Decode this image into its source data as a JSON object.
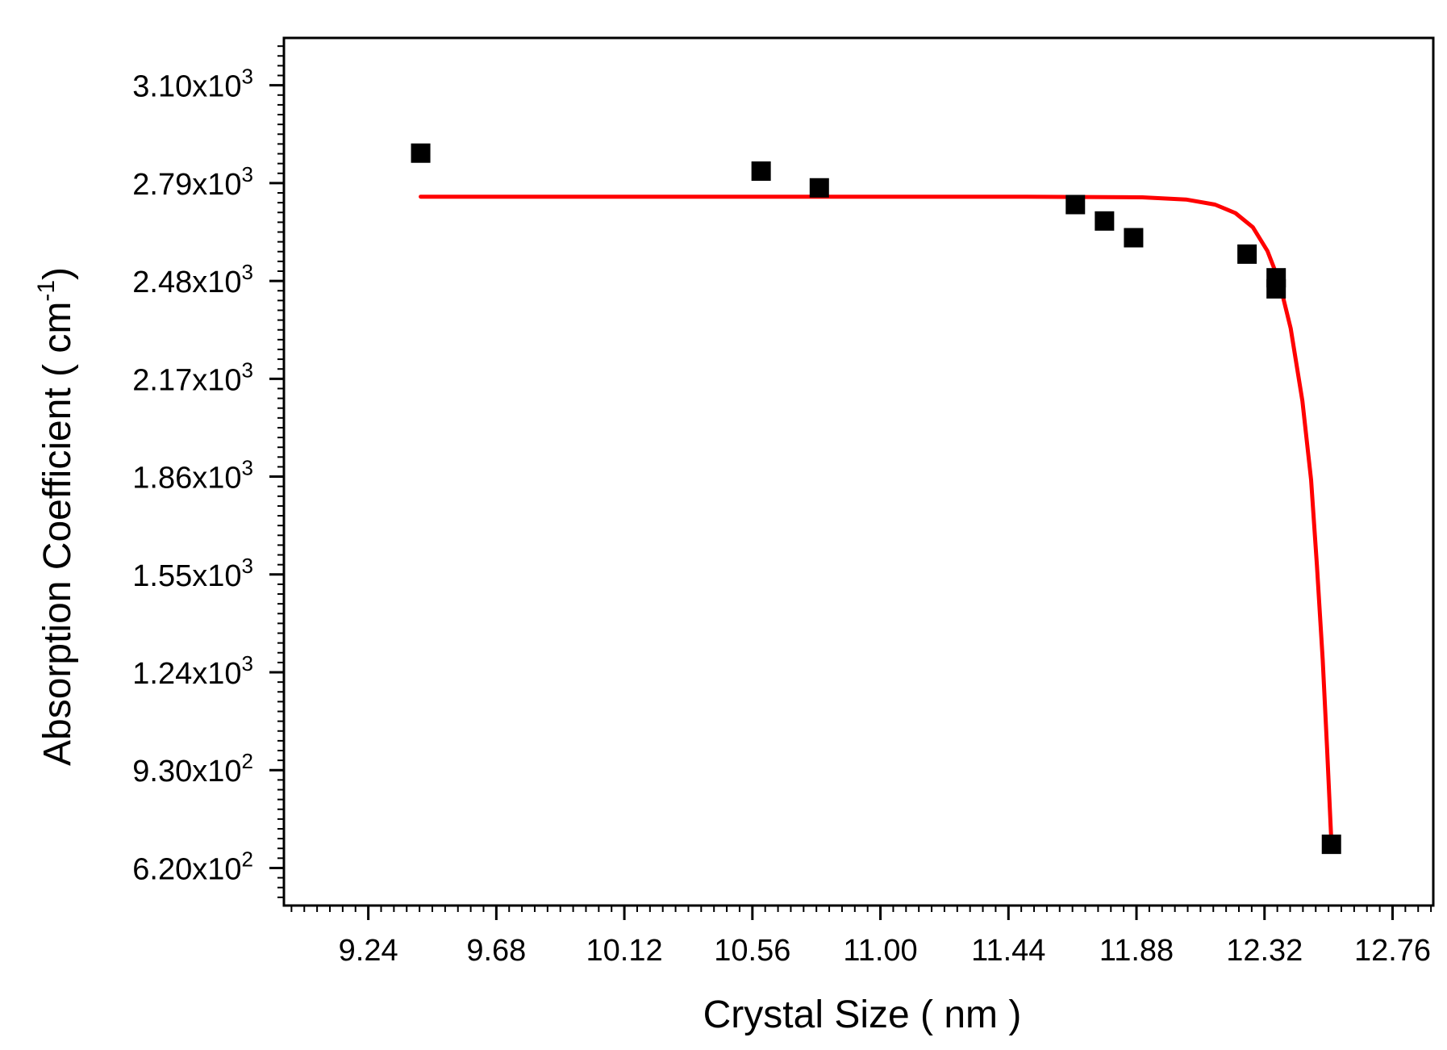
{
  "chart_data": {
    "type": "scatter",
    "title": "",
    "xlabel": "Crystal Size ( nm )",
    "ylabel": "Absorption Coefficient ( cm",
    "ylabel_sup": "-1",
    "ylabel_end": ")",
    "xlim": [
      8.95,
      12.9
    ],
    "ylim": [
      501,
      3250
    ],
    "x_ticks": [
      9.24,
      9.68,
      10.12,
      10.56,
      11.0,
      11.44,
      11.88,
      12.32,
      12.76
    ],
    "x_tick_labels": [
      "9.24",
      "9.68",
      "10.12",
      "10.56",
      "11.00",
      "11.44",
      "11.88",
      "12.32",
      "12.76"
    ],
    "y_ticks": [
      {
        "value": 620,
        "mantissa": "6.20",
        "base": "x10",
        "exp": "2"
      },
      {
        "value": 930,
        "mantissa": "9.30",
        "base": "x10",
        "exp": "2"
      },
      {
        "value": 1240,
        "mantissa": "1.24",
        "base": "x10",
        "exp": "3"
      },
      {
        "value": 1550,
        "mantissa": "1.55",
        "base": "x10",
        "exp": "3"
      },
      {
        "value": 1860,
        "mantissa": "1.86",
        "base": "x10",
        "exp": "3"
      },
      {
        "value": 2170,
        "mantissa": "2.17",
        "base": "x10",
        "exp": "3"
      },
      {
        "value": 2480,
        "mantissa": "2.48",
        "base": "x10",
        "exp": "3"
      },
      {
        "value": 2790,
        "mantissa": "2.79",
        "base": "x10",
        "exp": "3"
      },
      {
        "value": 3100,
        "mantissa": "3.10",
        "base": "x10",
        "exp": "3"
      }
    ],
    "grid": false,
    "legend": "none",
    "series": [
      {
        "type": "scatter",
        "marker": "square",
        "color": "#000000",
        "points": [
          {
            "x": 9.42,
            "y": 2885
          },
          {
            "x": 10.59,
            "y": 2828
          },
          {
            "x": 10.79,
            "y": 2775
          },
          {
            "x": 11.67,
            "y": 2722
          },
          {
            "x": 11.77,
            "y": 2670
          },
          {
            "x": 11.87,
            "y": 2617
          },
          {
            "x": 12.26,
            "y": 2565
          },
          {
            "x": 12.36,
            "y": 2490
          },
          {
            "x": 12.36,
            "y": 2455
          },
          {
            "x": 12.55,
            "y": 695
          }
        ]
      },
      {
        "type": "line",
        "color": "#ff0000",
        "points": [
          {
            "x": 9.42,
            "y": 2747
          },
          {
            "x": 10.5,
            "y": 2747
          },
          {
            "x": 11.5,
            "y": 2747
          },
          {
            "x": 11.9,
            "y": 2745
          },
          {
            "x": 12.05,
            "y": 2738
          },
          {
            "x": 12.15,
            "y": 2722
          },
          {
            "x": 12.22,
            "y": 2695
          },
          {
            "x": 12.28,
            "y": 2650
          },
          {
            "x": 12.33,
            "y": 2575
          },
          {
            "x": 12.37,
            "y": 2480
          },
          {
            "x": 12.41,
            "y": 2330
          },
          {
            "x": 12.45,
            "y": 2100
          },
          {
            "x": 12.48,
            "y": 1850
          },
          {
            "x": 12.5,
            "y": 1580
          },
          {
            "x": 12.52,
            "y": 1280
          },
          {
            "x": 12.535,
            "y": 1000
          },
          {
            "x": 12.55,
            "y": 700
          }
        ]
      }
    ]
  }
}
